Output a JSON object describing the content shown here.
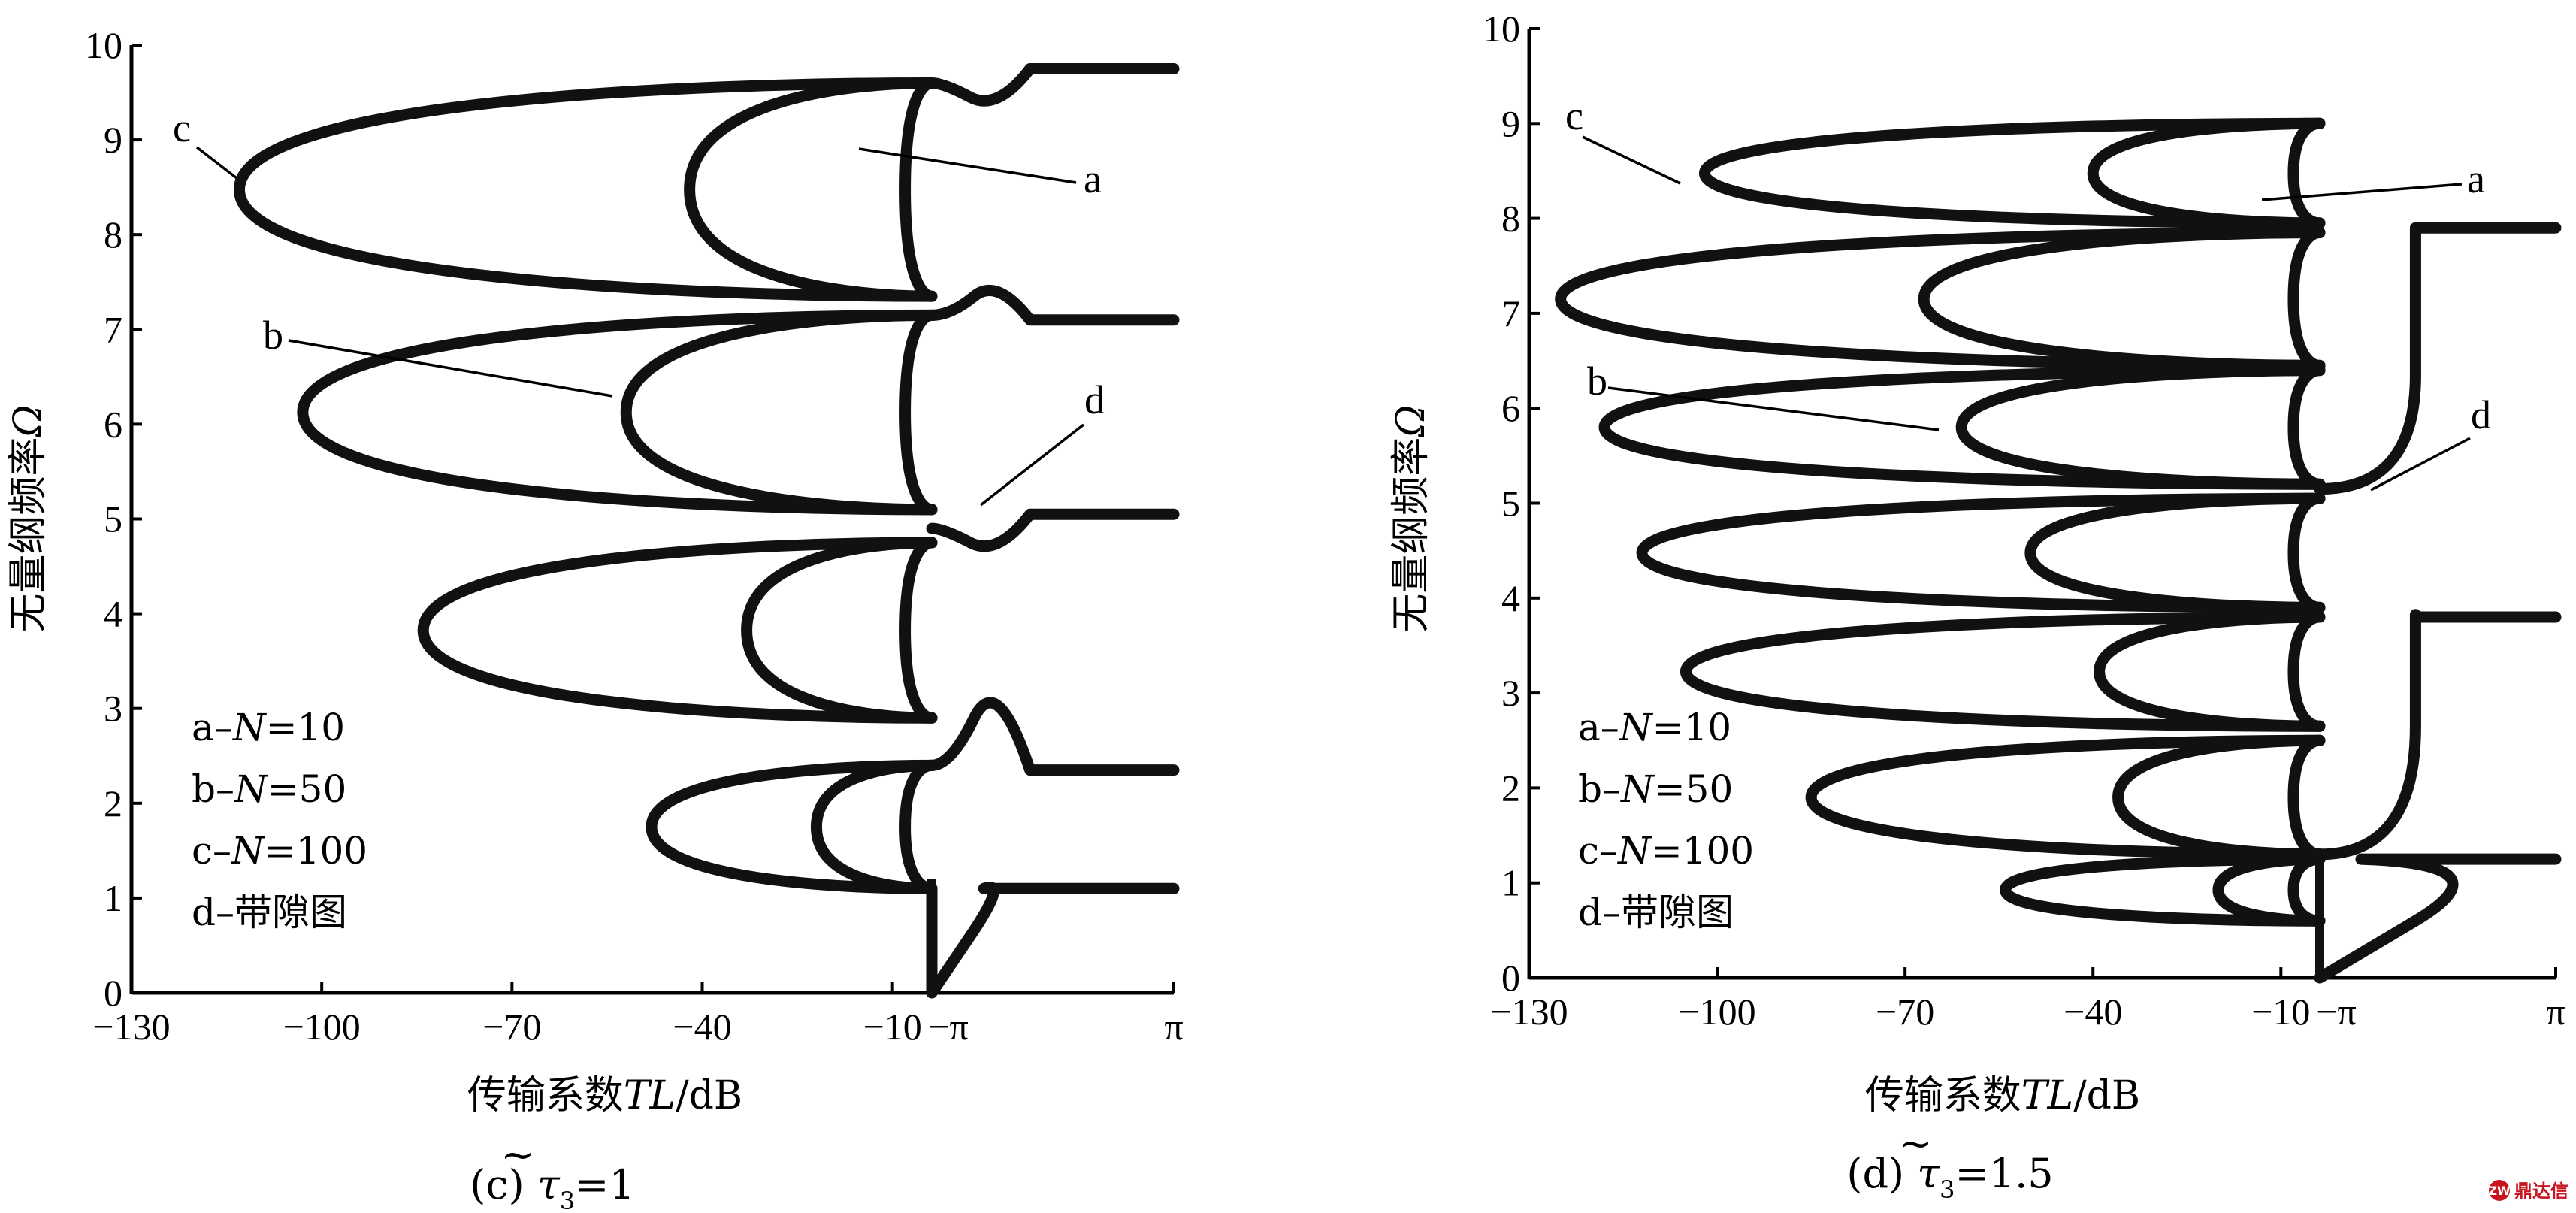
{
  "chart_data": [
    {
      "type": "line",
      "panel": "c",
      "caption": {
        "prefix": "(c)",
        "symbol": "τ",
        "tilde": "~",
        "subscript": "3",
        "equals_value": "=1"
      },
      "xlabel": {
        "cn": "传输系数",
        "var": "TL",
        "unit": "/dB"
      },
      "ylabel": {
        "cn": "无量纲频率",
        "var": "Ω"
      },
      "ylim": [
        0,
        10
      ],
      "y_ticks": [
        "0",
        "1",
        "2",
        "3",
        "4",
        "5",
        "6",
        "7",
        "8",
        "9",
        "10"
      ],
      "x_tick_labels": [
        "−130",
        "−100",
        "−70",
        "−40",
        "−10",
        "−π",
        "π"
      ],
      "tl_ticks": [
        -130,
        -100,
        -70,
        -40,
        -10
      ],
      "tl_range": [
        -130,
        -3.8
      ],
      "bandgap_range": [
        "−π",
        "π"
      ],
      "legend": [
        {
          "key": "a",
          "dash": "–",
          "var": "N",
          "value": "=10"
        },
        {
          "key": "b",
          "dash": "–",
          "var": "N",
          "value": "=50"
        },
        {
          "key": "c",
          "dash": "–",
          "var": "N",
          "value": "=100"
        },
        {
          "key": "d",
          "dash": "–",
          "text": "带隙图"
        }
      ],
      "callouts": [
        "a",
        "b",
        "c",
        "d"
      ],
      "series": [
        {
          "name": "a",
          "note": "N=10 transmission lobes (TL in dB vs Ω)",
          "lobes": [
            {
              "omega_range": [
                0.0,
                1.1
              ],
              "min_TL": -3.8
            },
            {
              "omega_range": [
                1.1,
                2.4
              ],
              "min_TL": -8
            },
            {
              "omega_range": [
                2.9,
                4.75
              ],
              "min_TL": -8
            },
            {
              "omega_range": [
                5.1,
                7.15
              ],
              "min_TL": -8
            },
            {
              "omega_range": [
                7.35,
                9.6
              ],
              "min_TL": -8
            }
          ]
        },
        {
          "name": "b",
          "note": "N=50 transmission lobes",
          "lobes": [
            {
              "omega_range": [
                1.1,
                2.4
              ],
              "min_TL": -22
            },
            {
              "omega_range": [
                2.9,
                4.75
              ],
              "min_TL": -33
            },
            {
              "omega_range": [
                5.1,
                7.15
              ],
              "min_TL": -52
            },
            {
              "omega_range": [
                7.35,
                9.6
              ],
              "min_TL": -42
            }
          ]
        },
        {
          "name": "c",
          "note": "N=100 transmission lobes",
          "lobes": [
            {
              "omega_range": [
                1.1,
                2.4
              ],
              "min_TL": -48
            },
            {
              "omega_range": [
                2.9,
                4.75
              ],
              "min_TL": -84
            },
            {
              "omega_range": [
                5.1,
                7.15
              ],
              "min_TL": -103
            },
            {
              "omega_range": [
                7.35,
                9.6
              ],
              "min_TL": -113
            }
          ]
        },
        {
          "name": "d",
          "note": "band gap diagram: ka from −π to π",
          "points": [
            {
              "ka": 0,
              "omega": 0.0
            },
            {
              "ka": 1.0,
              "omega": 0.6
            },
            {
              "ka": 1.35,
              "omega": 1.1
            },
            {
              "ka": 0.5,
              "omega": 2.4
            },
            {
              "ka": 1.1,
              "omega": 2.9
            },
            {
              "ka": 2.55,
              "omega": 2.35
            },
            {
              "ka": 0.3,
              "omega": 4.9
            },
            {
              "ka": 1.0,
              "omega": 4.75
            },
            {
              "ka": 2.55,
              "omega": 5.05
            },
            {
              "ka": 0.5,
              "omega": 7.15
            },
            {
              "ka": 1.1,
              "omega": 7.35
            },
            {
              "ka": 2.55,
              "omega": 7.1
            },
            {
              "ka": 0.3,
              "omega": 9.6
            },
            {
              "ka": 1.0,
              "omega": 9.45
            },
            {
              "ka": 2.55,
              "omega": 9.75
            }
          ]
        }
      ]
    },
    {
      "type": "line",
      "panel": "d",
      "caption": {
        "prefix": "(d)",
        "symbol": "τ",
        "tilde": "~",
        "subscript": "3",
        "equals_value": "=1.5"
      },
      "xlabel": {
        "cn": "传输系数",
        "var": "TL",
        "unit": "/dB"
      },
      "ylabel": {
        "cn": "无量纲频率",
        "var": "Ω"
      },
      "ylim": [
        0,
        10
      ],
      "y_ticks": [
        "0",
        "1",
        "2",
        "3",
        "4",
        "5",
        "6",
        "7",
        "8",
        "9",
        "10"
      ],
      "x_tick_labels": [
        "−130",
        "−100",
        "−70",
        "−40",
        "−10",
        "−π",
        "π"
      ],
      "tl_ticks": [
        -130,
        -100,
        -70,
        -40,
        -10
      ],
      "tl_range": [
        -130,
        -3.8
      ],
      "bandgap_range": [
        "−π",
        "π"
      ],
      "legend": [
        {
          "key": "a",
          "dash": "–",
          "var": "N",
          "value": "=10"
        },
        {
          "key": "b",
          "dash": "–",
          "var": "N",
          "value": "=50"
        },
        {
          "key": "c",
          "dash": "–",
          "var": "N",
          "value": "=100"
        },
        {
          "key": "d",
          "dash": "–",
          "text": "带隙图"
        }
      ],
      "callouts": [
        "a",
        "b",
        "c",
        "d"
      ],
      "series": [
        {
          "name": "a",
          "note": "N=10 transmission lobes",
          "lobes": [
            {
              "omega_range": [
                0.6,
                1.25
              ],
              "min_TL": -8
            },
            {
              "omega_range": [
                1.3,
                2.5
              ],
              "min_TL": -8
            },
            {
              "omega_range": [
                2.65,
                3.8
              ],
              "min_TL": -8
            },
            {
              "omega_range": [
                3.9,
                5.05
              ],
              "min_TL": -8
            },
            {
              "omega_range": [
                5.2,
                6.4
              ],
              "min_TL": -8
            },
            {
              "omega_range": [
                6.45,
                7.85
              ],
              "min_TL": -8
            },
            {
              "omega_range": [
                7.95,
                9.0
              ],
              "min_TL": -8
            }
          ]
        },
        {
          "name": "b",
          "note": "N=50 transmission lobes",
          "lobes": [
            {
              "omega_range": [
                0.6,
                1.25
              ],
              "min_TL": -20
            },
            {
              "omega_range": [
                1.3,
                2.5
              ],
              "min_TL": -36
            },
            {
              "omega_range": [
                2.65,
                3.8
              ],
              "min_TL": -39
            },
            {
              "omega_range": [
                3.9,
                5.05
              ],
              "min_TL": -50
            },
            {
              "omega_range": [
                5.2,
                6.4
              ],
              "min_TL": -61
            },
            {
              "omega_range": [
                6.45,
                7.85
              ],
              "min_TL": -67
            },
            {
              "omega_range": [
                7.95,
                9.0
              ],
              "min_TL": -40
            }
          ]
        },
        {
          "name": "c",
          "note": "N=100 transmission lobes",
          "lobes": [
            {
              "omega_range": [
                0.6,
                1.25
              ],
              "min_TL": -54
            },
            {
              "omega_range": [
                1.3,
                2.5
              ],
              "min_TL": -85
            },
            {
              "omega_range": [
                2.65,
                3.8
              ],
              "min_TL": -105
            },
            {
              "omega_range": [
                3.9,
                5.05
              ],
              "min_TL": -112
            },
            {
              "omega_range": [
                5.2,
                6.4
              ],
              "min_TL": -118
            },
            {
              "omega_range": [
                6.45,
                7.85
              ],
              "min_TL": -125
            },
            {
              "omega_range": [
                7.95,
                9.0
              ],
              "min_TL": -102
            }
          ]
        },
        {
          "name": "d",
          "note": "band gap diagram: ka from −π to π",
          "points": [
            {
              "ka": 0,
              "omega": 0.0
            },
            {
              "ka": 2.55,
              "omega": 0.6
            },
            {
              "ka": 1.1,
              "omega": 1.25
            },
            {
              "ka": 2.55,
              "omega": 1.3
            },
            {
              "ka": 2.55,
              "omega": 2.65
            },
            {
              "ka": 2.55,
              "omega": 3.8
            },
            {
              "ka": 2.55,
              "omega": 5.15
            },
            {
              "ka": 2.55,
              "omega": 6.35
            },
            {
              "ka": 2.55,
              "omega": 7.9
            },
            {
              "ka": 2.55,
              "omega": 8.85
            }
          ]
        }
      ]
    }
  ],
  "watermark": {
    "text": "鼎达信",
    "badge": "ZW"
  }
}
